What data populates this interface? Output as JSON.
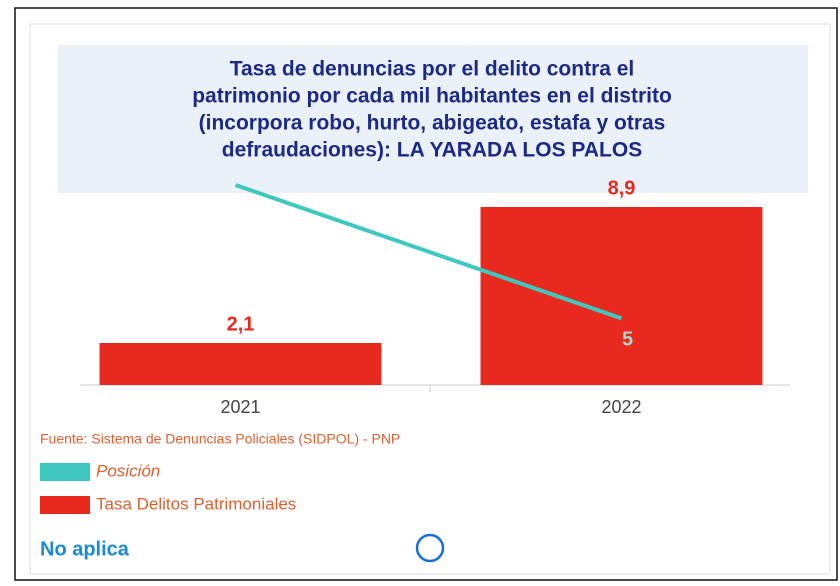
{
  "chart_data": {
    "type": "bar",
    "title_lines": [
      "Tasa de denuncias por el delito contra el",
      "patrimonio por cada mil habitantes en el distrito",
      "(incorpora robo, hurto, abigeato, estafa y otras",
      "defraudaciones): LA YARADA LOS PALOS"
    ],
    "categories": [
      "2021",
      "2022"
    ],
    "series": [
      {
        "name": "Posición",
        "type": "line",
        "color": "#3ec8c0",
        "axis": "y2",
        "values": [
          15,
          5
        ],
        "value_labels": [
          null,
          "5"
        ]
      },
      {
        "name": "Tasa Delitos Patrimoniales",
        "type": "bar",
        "color": "#e8291e",
        "values": [
          2.1,
          8.9
        ],
        "value_labels": [
          "2,1",
          "8,9"
        ]
      }
    ],
    "ylim": [
      0,
      10
    ],
    "y2lim": [
      0,
      15
    ],
    "source": "Fuente: Sistema de Denuncias Policiales (SIDPOL) - PNP",
    "note": "No aplica"
  }
}
